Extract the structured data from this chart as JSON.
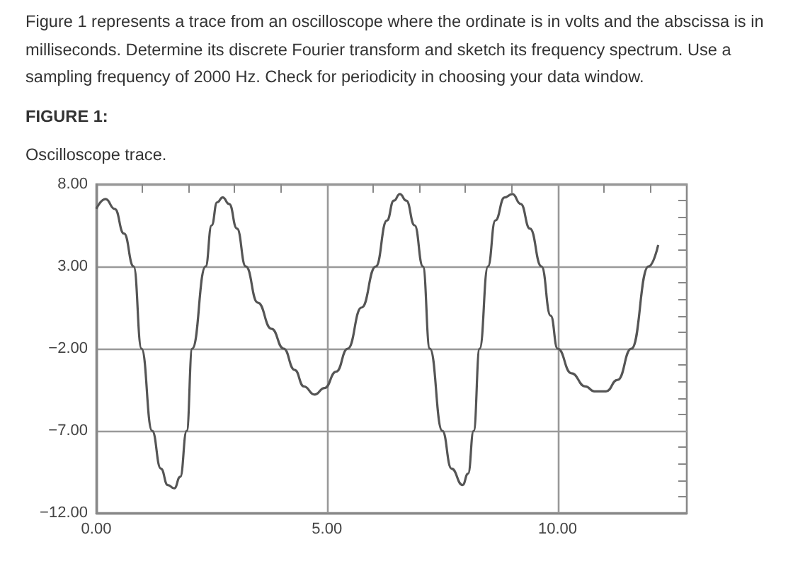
{
  "chart_data": {
    "type": "line",
    "title": "FIGURE 1:",
    "subtitle": "Oscilloscope trace.",
    "annotations": [
      "Figure 1 represents a trace from an oscilloscope where the ordinate is in volts and the abscissa is in milliseconds. Determine its discrete Fourier transform and sketch its frequency spectrum. Use a sampling frequency of 2000 Hz. Check for periodicity in choosing your data window."
    ],
    "x": [
      0,
      0.2,
      0.4,
      0.6,
      0.81,
      0.98,
      1.21,
      1.4,
      1.55,
      1.69,
      1.82,
      1.96,
      2.08,
      2.37,
      2.5,
      2.62,
      2.74,
      2.88,
      3.05,
      3.24,
      3.5,
      3.8,
      4.06,
      4.3,
      4.5,
      4.73,
      4.95,
      5.2,
      5.45,
      5.75,
      6.06,
      6.3,
      6.45,
      6.58,
      6.72,
      6.9,
      7.08,
      7.23,
      7.5,
      7.7,
      7.94,
      8.06,
      8.18,
      8.31,
      8.49,
      8.65,
      8.85,
      9.02,
      9.2,
      9.4,
      9.65,
      9.85,
      10.0,
      10.3,
      10.6,
      10.8,
      11.05,
      11.3,
      11.6,
      11.97,
      12.18
    ],
    "series": [
      {
        "color": "#555555",
        "values": [
          6.5,
          7.1,
          6.5,
          5.0,
          3,
          -2,
          -7,
          -9.3,
          -10.3,
          -10.5,
          -9.8,
          -7,
          -2,
          3,
          5.5,
          6.9,
          7.2,
          6.8,
          5.3,
          3,
          0.8,
          -0.8,
          -2,
          -3.3,
          -4.3,
          -4.8,
          -4.4,
          -3.4,
          -2,
          0.5,
          3,
          5.8,
          7.0,
          7.4,
          7.0,
          5.5,
          3,
          -2,
          -7,
          -9.3,
          -10.3,
          -9.6,
          -7,
          -2,
          3,
          5.8,
          7.2,
          7.4,
          6.8,
          5.3,
          3,
          0,
          -2,
          -3.5,
          -4.3,
          -4.6,
          -4.6,
          -3.9,
          -2,
          3,
          4.3
        ]
      }
    ],
    "xlim": [
      0,
      12.8
    ],
    "xticks": [
      {
        "value": 0,
        "label": "0.00"
      },
      {
        "value": 1,
        "label": null
      },
      {
        "value": 2,
        "label": null
      },
      {
        "value": 3,
        "label": null
      },
      {
        "value": 4,
        "label": null
      },
      {
        "value": 5,
        "label": "5.00"
      },
      {
        "value": 6,
        "label": null
      },
      {
        "value": 7,
        "label": null
      },
      {
        "value": 8,
        "label": null
      },
      {
        "value": 9,
        "label": null
      },
      {
        "value": 10,
        "label": "10.00"
      },
      {
        "value": 11,
        "label": null
      },
      {
        "value": 12,
        "label": null
      }
    ],
    "ylim": [
      -12,
      8
    ],
    "yticks": [
      {
        "value": -12,
        "label": "−12.00"
      },
      {
        "value": -11,
        "label": null
      },
      {
        "value": -10,
        "label": null
      },
      {
        "value": -9,
        "label": null
      },
      {
        "value": -8,
        "label": null
      },
      {
        "value": -7,
        "label": "−7.00"
      },
      {
        "value": -6,
        "label": null
      },
      {
        "value": -5,
        "label": null
      },
      {
        "value": -4,
        "label": null
      },
      {
        "value": -3,
        "label": null
      },
      {
        "value": -2,
        "label": "−2.00"
      },
      {
        "value": -1,
        "label": null
      },
      {
        "value": 0,
        "label": null
      },
      {
        "value": 1,
        "label": null
      },
      {
        "value": 2,
        "label": null
      },
      {
        "value": 3,
        "label": "3.00"
      },
      {
        "value": 4,
        "label": null
      },
      {
        "value": 5,
        "label": null
      },
      {
        "value": 6,
        "label": null
      },
      {
        "value": 7,
        "label": null
      },
      {
        "value": 8,
        "label": "8.00"
      }
    ],
    "grid": true,
    "marker": "none",
    "line_style": "solid"
  }
}
